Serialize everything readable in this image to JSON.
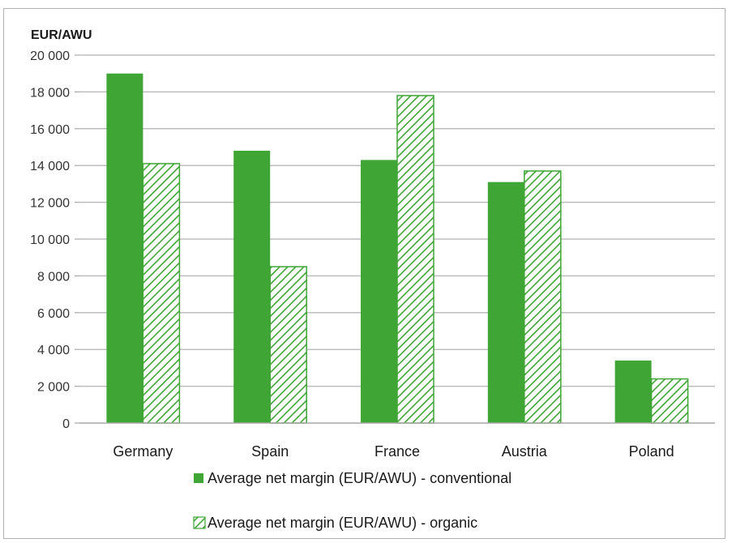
{
  "chart_data": {
    "type": "bar",
    "ylabel": "EUR/AWU",
    "ylim": [
      0,
      20000
    ],
    "y_ticks": [
      0,
      2000,
      4000,
      6000,
      8000,
      10000,
      12000,
      14000,
      16000,
      18000,
      20000
    ],
    "y_tick_labels": [
      "0",
      "2 000",
      "4 000",
      "6 000",
      "8 000",
      "10 000",
      "12 000",
      "14 000",
      "16 000",
      "18 000",
      "20 000"
    ],
    "grid": true,
    "legend_position": "bottom",
    "categories": [
      "Germany",
      "Spain",
      "France",
      "Austria",
      "Poland"
    ],
    "series": [
      {
        "name": "Average net margin (EUR/AWU) - conventional",
        "values": [
          19000,
          14800,
          14300,
          13100,
          3400
        ],
        "style": "solid",
        "color": "#3fa535"
      },
      {
        "name": "Average net margin (EUR/AWU) - organic",
        "values": [
          14100,
          8500,
          17800,
          13700,
          2400
        ],
        "style": "hatched",
        "color": "#3fa535"
      }
    ]
  }
}
